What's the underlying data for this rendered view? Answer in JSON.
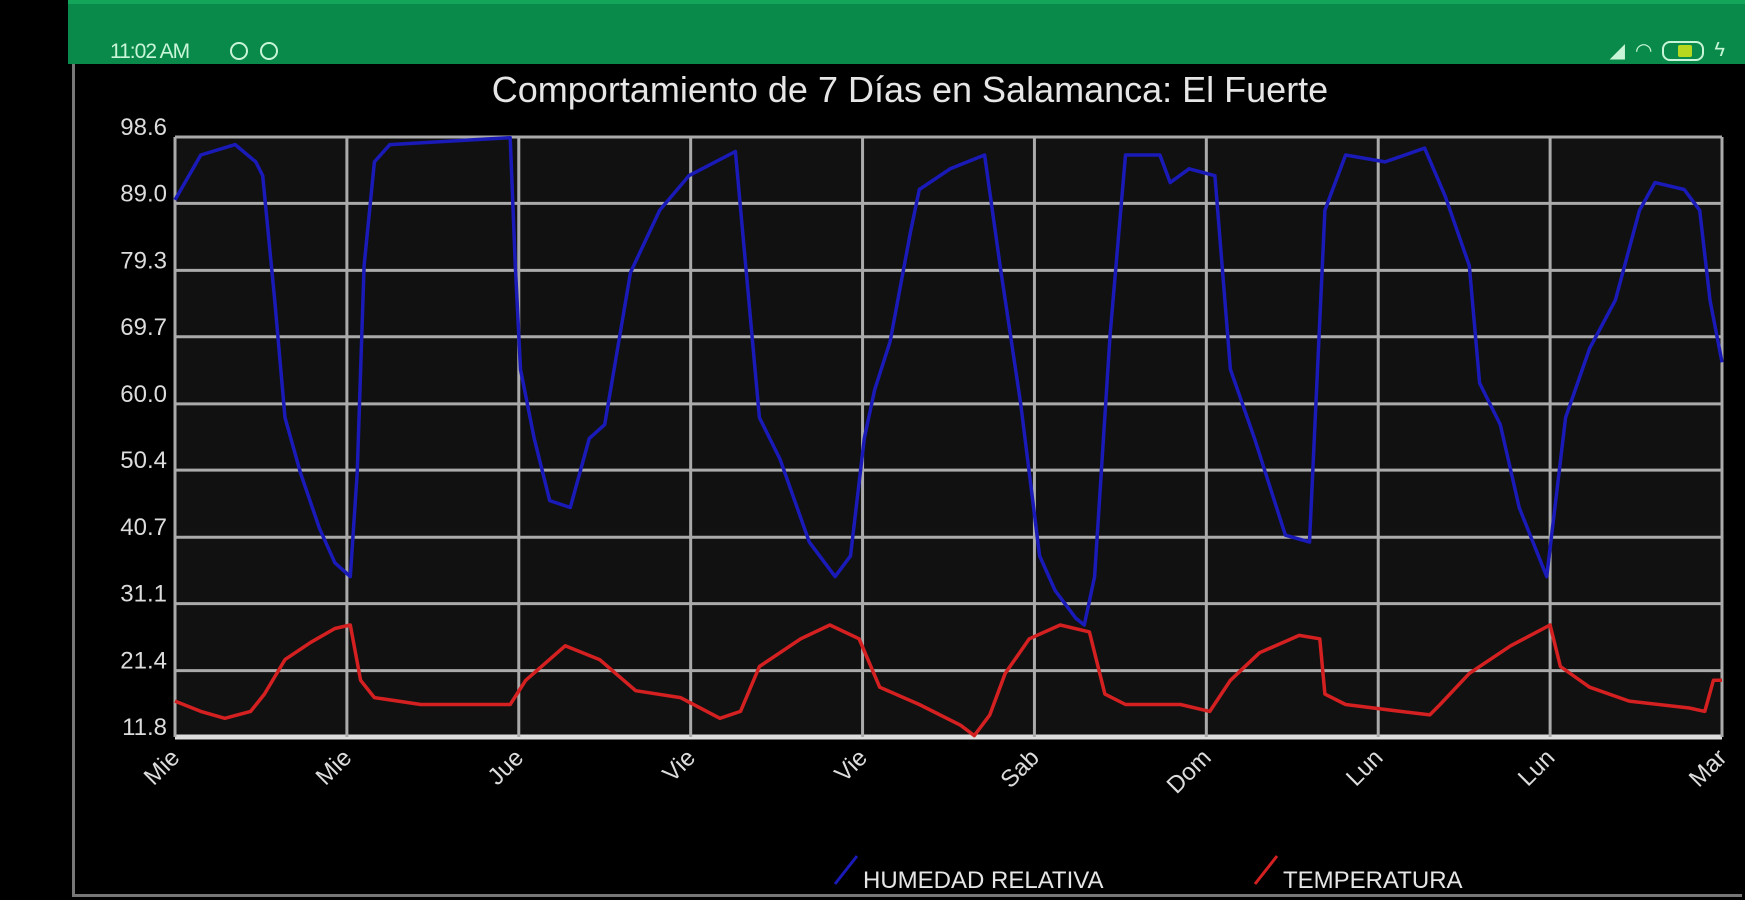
{
  "status_bar": {
    "time": "11:02 AM",
    "battery_level": "57",
    "accent_color": "#0a8a4a"
  },
  "chart_data": {
    "type": "line",
    "title": "Comportamiento de 7 Días en Salamanca: El Fuerte",
    "xlabel": "",
    "ylabel": "",
    "x_tick_labels": [
      "Mie",
      "Mie",
      "Jue",
      "Vie",
      "Vie",
      "Sab",
      "Dom",
      "Lun",
      "Lun",
      "Mar"
    ],
    "y_tick_labels": [
      "98.6",
      "89.0",
      "79.3",
      "69.7",
      "60.0",
      "50.4",
      "40.7",
      "31.1",
      "21.4",
      "11.8"
    ],
    "ylim": [
      11.8,
      98.6
    ],
    "grid": true,
    "legend_placement": "bottom",
    "background": "#111111",
    "series": [
      {
        "name": "HUMEDAD RELATIVA",
        "color": "#1a1ab8",
        "points": [
          [
            0,
            89.5
          ],
          [
            0.15,
            96
          ],
          [
            0.35,
            97.5
          ],
          [
            0.47,
            95
          ],
          [
            0.51,
            93
          ],
          [
            0.58,
            75
          ],
          [
            0.64,
            58
          ],
          [
            0.73,
            50
          ],
          [
            0.84,
            42
          ],
          [
            0.93,
            37
          ],
          [
            1.02,
            35
          ],
          [
            1.06,
            50
          ],
          [
            1.1,
            80
          ],
          [
            1.16,
            95
          ],
          [
            1.25,
            97.5
          ],
          [
            1.6,
            98
          ],
          [
            1.95,
            98.5
          ],
          [
            1.98,
            80
          ],
          [
            2.01,
            65
          ],
          [
            2.09,
            55
          ],
          [
            2.18,
            46
          ],
          [
            2.3,
            45
          ],
          [
            2.41,
            55
          ],
          [
            2.5,
            57
          ],
          [
            2.65,
            79
          ],
          [
            2.82,
            88
          ],
          [
            2.99,
            93
          ],
          [
            3.26,
            96.5
          ],
          [
            3.32,
            80
          ],
          [
            3.4,
            58
          ],
          [
            3.52,
            52
          ],
          [
            3.69,
            40
          ],
          [
            3.84,
            35
          ],
          [
            3.93,
            38
          ],
          [
            4.01,
            55
          ],
          [
            4.07,
            62
          ],
          [
            4.16,
            69
          ],
          [
            4.28,
            85
          ],
          [
            4.33,
            91
          ],
          [
            4.51,
            94
          ],
          [
            4.71,
            96
          ],
          [
            4.8,
            80
          ],
          [
            4.92,
            60
          ],
          [
            5.03,
            38
          ],
          [
            5.12,
            33
          ],
          [
            5.24,
            29
          ],
          [
            5.29,
            28
          ],
          [
            5.35,
            35
          ],
          [
            5.44,
            70
          ],
          [
            5.53,
            96
          ],
          [
            5.73,
            96
          ],
          [
            5.79,
            92
          ],
          [
            5.9,
            94
          ],
          [
            6.05,
            93
          ],
          [
            6.14,
            65
          ],
          [
            6.28,
            55
          ],
          [
            6.46,
            41
          ],
          [
            6.6,
            40
          ],
          [
            6.69,
            88
          ],
          [
            6.81,
            96
          ],
          [
            7.04,
            95
          ],
          [
            7.27,
            97
          ],
          [
            7.39,
            90
          ],
          [
            7.53,
            80
          ],
          [
            7.59,
            63
          ],
          [
            7.71,
            57
          ],
          [
            7.82,
            45
          ],
          [
            7.98,
            35
          ],
          [
            8.09,
            58
          ],
          [
            8.23,
            68
          ],
          [
            8.38,
            75
          ],
          [
            8.52,
            88
          ],
          [
            8.61,
            92
          ],
          [
            8.78,
            91
          ],
          [
            8.87,
            88
          ],
          [
            8.93,
            75
          ],
          [
            9,
            66
          ]
        ]
      },
      {
        "name": "TEMPERATURA",
        "color": "#d42020",
        "points": [
          [
            0,
            17
          ],
          [
            0.15,
            15.5
          ],
          [
            0.29,
            14.5
          ],
          [
            0.44,
            15.5
          ],
          [
            0.52,
            18
          ],
          [
            0.64,
            23
          ],
          [
            0.79,
            25.5
          ],
          [
            0.93,
            27.5
          ],
          [
            1.02,
            28
          ],
          [
            1.08,
            20
          ],
          [
            1.16,
            17.5
          ],
          [
            1.43,
            16.5
          ],
          [
            1.6,
            16.5
          ],
          [
            1.95,
            16.5
          ],
          [
            2.04,
            20
          ],
          [
            2.27,
            25
          ],
          [
            2.47,
            23
          ],
          [
            2.68,
            18.5
          ],
          [
            2.94,
            17.5
          ],
          [
            3.17,
            14.5
          ],
          [
            3.29,
            15.5
          ],
          [
            3.4,
            22
          ],
          [
            3.64,
            26
          ],
          [
            3.81,
            28
          ],
          [
            3.98,
            26
          ],
          [
            4.1,
            19
          ],
          [
            4.33,
            16.5
          ],
          [
            4.57,
            13.5
          ],
          [
            4.65,
            12
          ],
          [
            4.74,
            15
          ],
          [
            4.83,
            21
          ],
          [
            4.97,
            26
          ],
          [
            5.15,
            28
          ],
          [
            5.32,
            27
          ],
          [
            5.41,
            18
          ],
          [
            5.53,
            16.5
          ],
          [
            5.85,
            16.5
          ],
          [
            6.02,
            15.5
          ],
          [
            6.14,
            20
          ],
          [
            6.31,
            24
          ],
          [
            6.54,
            26.5
          ],
          [
            6.66,
            26
          ],
          [
            6.69,
            18
          ],
          [
            6.81,
            16.5
          ],
          [
            7.13,
            15.5
          ],
          [
            7.3,
            15
          ],
          [
            7.36,
            16.5
          ],
          [
            7.53,
            21
          ],
          [
            7.77,
            25
          ],
          [
            8.0,
            28
          ],
          [
            8.06,
            22
          ],
          [
            8.23,
            19
          ],
          [
            8.46,
            17
          ],
          [
            8.81,
            16
          ],
          [
            8.9,
            15.5
          ],
          [
            8.95,
            20
          ],
          [
            9,
            20
          ]
        ]
      }
    ]
  }
}
